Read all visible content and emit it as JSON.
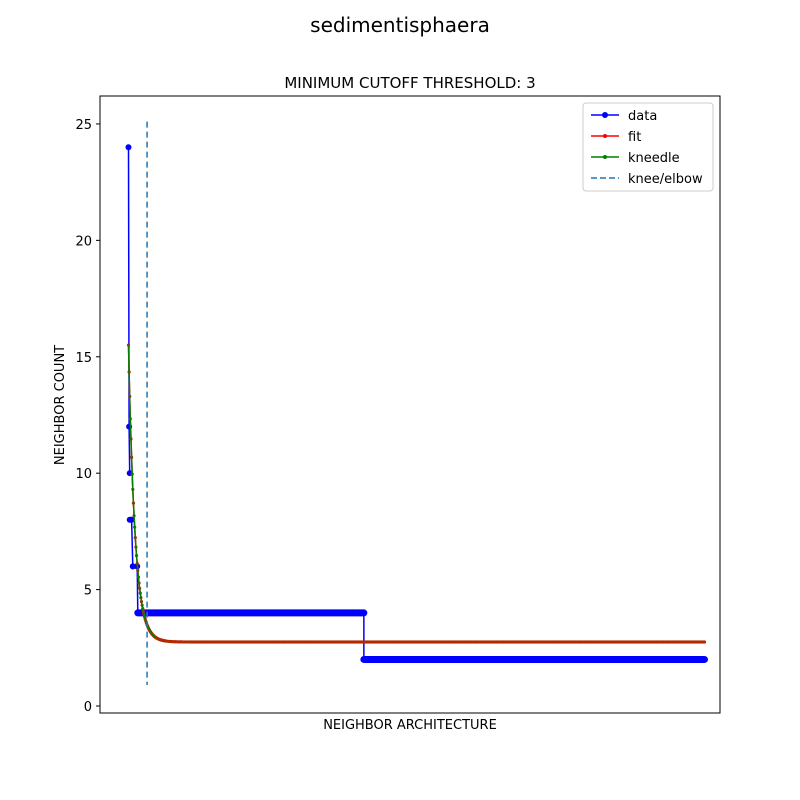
{
  "figure": {
    "suptitle": "sedimentisphaera"
  },
  "chart_data": {
    "type": "line",
    "title": "MINIMUM CUTOFF THRESHOLD: 3",
    "xlabel": "NEIGHBOR ARCHITECTURE",
    "ylabel": "NEIGHBOR COUNT",
    "xlim": [
      -2.6,
      97.5
    ],
    "ylim": [
      -0.3,
      26.2
    ],
    "yticks": [
      0,
      5,
      10,
      20,
      25
    ],
    "yticks_all": [
      0,
      5,
      10,
      15,
      20,
      25
    ],
    "x_ticks_shown": false,
    "grid": false,
    "legend_position": "top-right",
    "series": [
      {
        "name": "data",
        "color": "#0000ff",
        "marker": "circle",
        "style": "solid",
        "segments": [
          {
            "x": [
              2,
              2.1,
              2.2
            ],
            "y": [
              24,
              12,
              10
            ]
          },
          {
            "x": [
              2.2,
              2.4
            ],
            "y": [
              8,
              8
            ]
          },
          {
            "x": [
              2.5,
              2.7
            ],
            "y": [
              8,
              6
            ]
          },
          {
            "x": [
              2.7,
              3.4
            ],
            "y": [
              6,
              6
            ]
          },
          {
            "x": [
              3.4,
              3.5
            ],
            "y": [
              6,
              4
            ]
          }
        ],
        "steps": [
          {
            "y": 4,
            "x_from": 3.5,
            "x_to": 40.0
          },
          {
            "y": 2,
            "x_from": 40.0,
            "x_to": 95.0
          }
        ]
      },
      {
        "name": "fit",
        "color": "#ff0000",
        "marker": "point",
        "style": "solid",
        "model": {
          "form": "exponential_decay",
          "plateau": 2.75,
          "amplitude": 12.75,
          "decay": 0.95,
          "x_start": 2,
          "x_end": 95
        }
      },
      {
        "name": "kneedle",
        "color": "#008000",
        "marker": "point",
        "style": "solid",
        "model": {
          "form": "exponential_decay",
          "plateau": 2.75,
          "amplitude": 12.75,
          "decay": 0.95,
          "x_start": 2,
          "x_end": 95
        }
      },
      {
        "name": "knee/elbow",
        "color": "#1f77b4",
        "marker": "none",
        "style": "dashed",
        "vline": {
          "x": 5.0,
          "y_from": 0.9,
          "y_to": 25.1
        }
      }
    ]
  }
}
